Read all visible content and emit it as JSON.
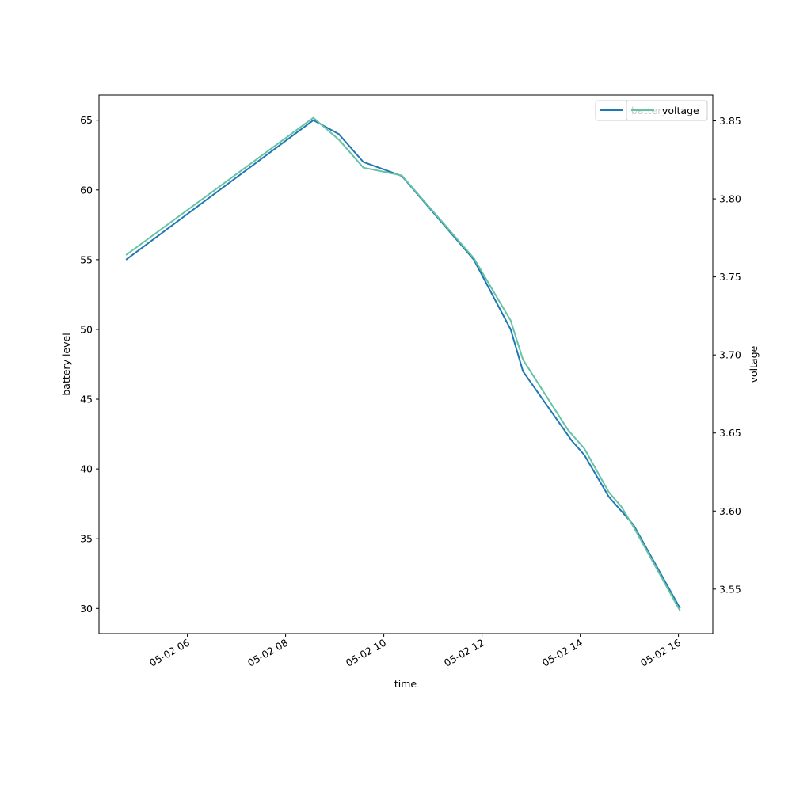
{
  "chart_data": {
    "type": "line",
    "xlabel": "time",
    "ylabel_left": "battery level",
    "ylabel_right": "voltage",
    "x_ticks": [
      "05-02 06",
      "05-02 08",
      "05-02 10",
      "05-02 12",
      "05-02 14",
      "05-02 16"
    ],
    "left_axis": {
      "ylim": [
        28.2,
        66.8
      ],
      "ticks": [
        "30",
        "35",
        "40",
        "45",
        "50",
        "55",
        "60",
        "65"
      ]
    },
    "right_axis": {
      "ylim": [
        3.5215,
        3.8665
      ],
      "ticks": [
        "3.55",
        "3.60",
        "3.65",
        "3.70",
        "3.75",
        "3.80",
        "3.85"
      ]
    },
    "xlim": [
      "05-02 04:12",
      "05-02 16:42"
    ],
    "legend_location": "upper right",
    "legends": [
      {
        "entries": [
          {
            "label": "battery",
            "color": "#1f77b4"
          }
        ]
      },
      {
        "entries": [
          {
            "label": "voltage",
            "color": "#66c2a5"
          }
        ]
      }
    ],
    "series": [
      {
        "name": "battery",
        "axis": "left",
        "color": "#1f77b4",
        "points": [
          {
            "x": "05-02 04:45",
            "y": 55
          },
          {
            "x": "05-02 08:34",
            "y": 65
          },
          {
            "x": "05-02 09:05",
            "y": 64
          },
          {
            "x": "05-02 09:35",
            "y": 62
          },
          {
            "x": "05-02 10:22",
            "y": 61
          },
          {
            "x": "05-02 11:50",
            "y": 55
          },
          {
            "x": "05-02 12:35",
            "y": 50
          },
          {
            "x": "05-02 12:50",
            "y": 47
          },
          {
            "x": "05-02 13:50",
            "y": 42
          },
          {
            "x": "05-02 14:05",
            "y": 41
          },
          {
            "x": "05-02 14:35",
            "y": 38
          },
          {
            "x": "05-02 15:05",
            "y": 36
          },
          {
            "x": "05-02 16:02",
            "y": 30
          }
        ]
      },
      {
        "name": "voltage",
        "axis": "right",
        "color": "#66c2a5",
        "points": [
          {
            "x": "05-02 04:45",
            "y": 3.764
          },
          {
            "x": "05-02 08:34",
            "y": 3.852
          },
          {
            "x": "05-02 09:05",
            "y": 3.838
          },
          {
            "x": "05-02 09:35",
            "y": 3.82
          },
          {
            "x": "05-02 10:22",
            "y": 3.815
          },
          {
            "x": "05-02 11:50",
            "y": 3.762
          },
          {
            "x": "05-02 12:35",
            "y": 3.722
          },
          {
            "x": "05-02 12:50",
            "y": 3.697
          },
          {
            "x": "05-02 13:45",
            "y": 3.652
          },
          {
            "x": "05-02 14:05",
            "y": 3.64
          },
          {
            "x": "05-02 14:35",
            "y": 3.612
          },
          {
            "x": "05-02 14:50",
            "y": 3.603
          },
          {
            "x": "05-02 15:05",
            "y": 3.59
          },
          {
            "x": "05-02 16:02",
            "y": 3.536
          }
        ]
      }
    ]
  }
}
